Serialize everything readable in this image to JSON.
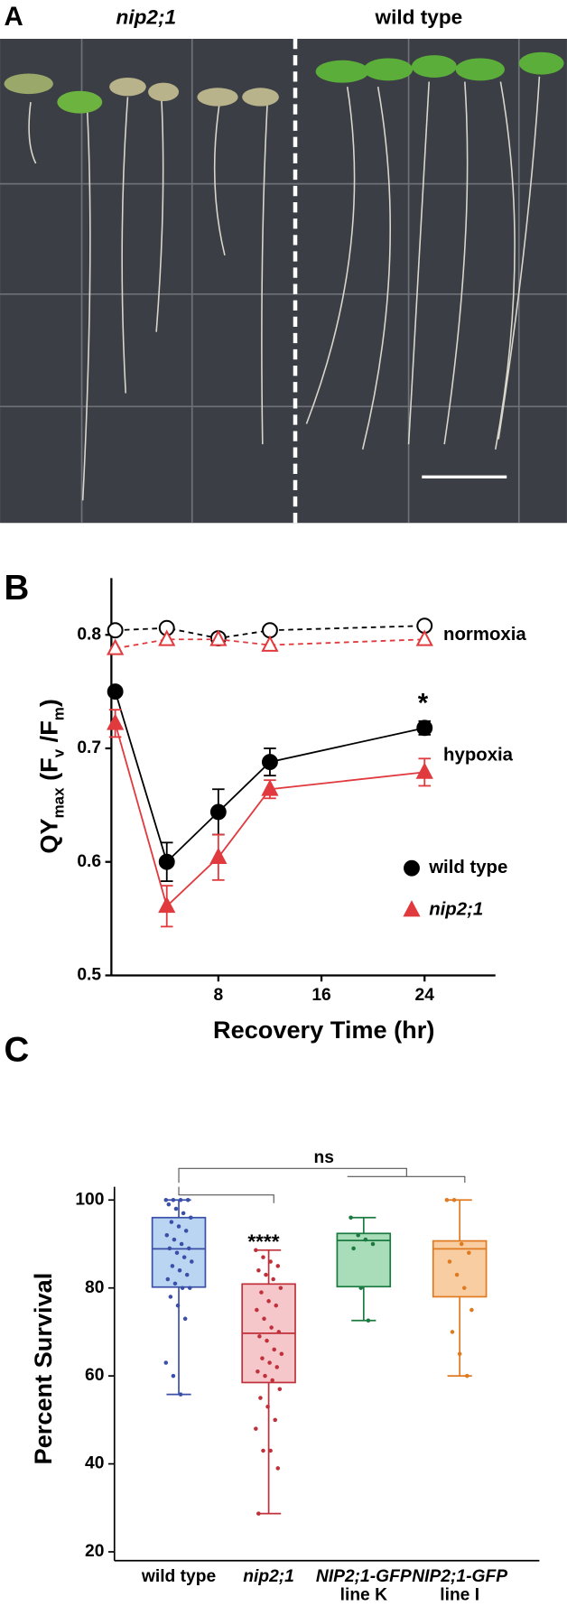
{
  "photo": {
    "panel_label": "A",
    "labels": [
      "nip2;1",
      "wild type"
    ]
  },
  "chart_data": [
    {
      "type": "line",
      "panel_label": "B",
      "x_label": "Recovery Time (hr)",
      "y_label": [
        {
          "text": "QY"
        },
        {
          "text": "max",
          "sub": true
        },
        {
          "text": " (F"
        },
        {
          "text": "v",
          "sub": true
        },
        {
          "text": " /F"
        },
        {
          "text": "m",
          "sub": true
        },
        {
          "text": ")"
        }
      ],
      "x": [
        0,
        4,
        8,
        12,
        24
      ],
      "xlim": [
        -0.3,
        29.5
      ],
      "xticks": [
        8,
        16,
        24
      ],
      "ylim": [
        0.5,
        0.85
      ],
      "yticks": [
        0.5,
        0.6,
        0.7,
        0.8
      ],
      "series": [
        {
          "color": "#000000",
          "marker": "circle",
          "filled": false,
          "dashed": true,
          "values": [
            0.804,
            0.806,
            0.797,
            0.804,
            0.808
          ]
        },
        {
          "color": "#e03a3e",
          "marker": "triangle",
          "filled": false,
          "dashed": true,
          "values": [
            0.788,
            0.796,
            0.796,
            0.791,
            0.796
          ]
        },
        {
          "name": "wild type",
          "color": "#000000",
          "marker": "circle",
          "filled": true,
          "dashed": false,
          "values": [
            0.75,
            0.6,
            0.644,
            0.688,
            0.718
          ],
          "errors": [
            0.003,
            0.017,
            0.02,
            0.012,
            0.006
          ]
        },
        {
          "name": "nip2;1",
          "italic": true,
          "color": "#e03a3e",
          "marker": "triangle",
          "filled": true,
          "dashed": false,
          "values": [
            0.722,
            0.561,
            0.604,
            0.664,
            0.679
          ],
          "errors": [
            0.012,
            0.018,
            0.02,
            0.008,
            0.012
          ]
        }
      ],
      "annotations": [
        "normoxia",
        "hypoxia",
        "*"
      ]
    },
    {
      "type": "box",
      "panel_label": "C",
      "y_label": "Percent Survival",
      "categories": [
        [
          "wild type"
        ],
        [
          "nip2;1"
        ],
        [
          "NIP2;1-GFP",
          "line K"
        ],
        [
          "NIP2;1-GFP",
          "line I"
        ]
      ],
      "category_italic": [
        [
          false
        ],
        [
          true
        ],
        [
          true,
          false
        ],
        [
          true,
          false
        ]
      ],
      "ylim": [
        18,
        103
      ],
      "yticks": [
        20,
        40,
        60,
        80,
        100
      ],
      "boxes": [
        {
          "color": "#3a4fa8",
          "fill": "#b9d5f1",
          "min": 55.8,
          "q1": 80.2,
          "median": 88.9,
          "q3": 96,
          "max": 100,
          "points": [
            100,
            100,
            100,
            100,
            99,
            98,
            97,
            96,
            95,
            94,
            93,
            92,
            91,
            90,
            89,
            89,
            88,
            87,
            86,
            85,
            84,
            83,
            82,
            81,
            80,
            80,
            78,
            76,
            73,
            63,
            60,
            55.8
          ]
        },
        {
          "color": "#c0303a",
          "fill": "#f5c6ca",
          "min": 28.7,
          "q1": 58.5,
          "median": 69.7,
          "q3": 80.9,
          "max": 88.6,
          "points": [
            88.6,
            87,
            86,
            85,
            84,
            83,
            82,
            80,
            79,
            77,
            76,
            75,
            73,
            71,
            70,
            69,
            68,
            66,
            65,
            64,
            63,
            62,
            61,
            60,
            59,
            57,
            55,
            53,
            50,
            48,
            43,
            43,
            39,
            28.7
          ]
        },
        {
          "color": "#1a7a40",
          "fill": "#a9dcb9",
          "min": 72.6,
          "q1": 80.3,
          "median": 90.8,
          "q3": 92.4,
          "max": 96,
          "points": [
            96,
            92,
            91,
            90,
            89,
            80,
            72.6
          ]
        },
        {
          "color": "#e07a20",
          "fill": "#f8cda2",
          "min": 60,
          "q1": 78,
          "median": 88.9,
          "q3": 90.7,
          "max": 100,
          "points": [
            100,
            100,
            90,
            88,
            86,
            83,
            80,
            75,
            70,
            65,
            60
          ]
        }
      ],
      "annotations": [
        "ns",
        "****"
      ]
    }
  ]
}
